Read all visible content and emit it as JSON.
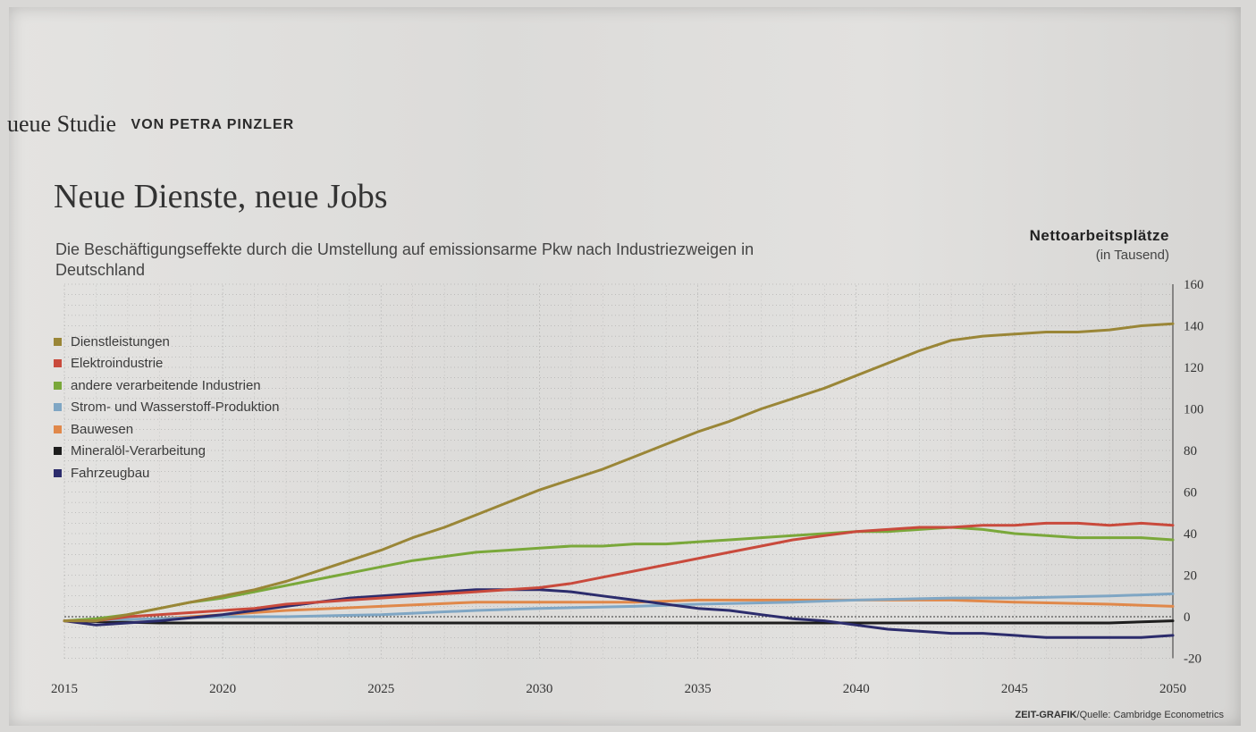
{
  "header": {
    "kicker": "ueue Studie",
    "author": "VON PETRA PINZLER"
  },
  "title": "Neue Dienste, neue Jobs",
  "subtitle": "Die Beschäftigungseffekte durch die Umstellung auf emissionsarme Pkw nach Industriezweigen in Deutschland",
  "unit": {
    "line1": "Nettoarbeitsplätze",
    "line2": "(in Tausend)"
  },
  "source": {
    "brand": "ZEIT-GRAFIK",
    "text": "/Quelle: Cambridge Econometrics"
  },
  "chart_data": {
    "type": "line",
    "title": "Neue Dienste, neue Jobs",
    "xlabel": "",
    "ylabel": "Nettoarbeitsplätze (in Tausend)",
    "xlim": [
      2015,
      2050
    ],
    "ylim": [
      -20,
      165
    ],
    "x_ticks": [
      2015,
      2020,
      2025,
      2030,
      2035,
      2040,
      2045,
      2050
    ],
    "y_ticks": [
      -20,
      0,
      20,
      40,
      60,
      80,
      100,
      120,
      140,
      160
    ],
    "grid": true,
    "legend_position": "top-left",
    "series": [
      {
        "name": "Dienstleistungen",
        "color": "#9a8637",
        "x": [
          2015,
          2016,
          2017,
          2018,
          2019,
          2020,
          2021,
          2022,
          2023,
          2024,
          2025,
          2026,
          2027,
          2028,
          2029,
          2030,
          2031,
          2032,
          2033,
          2034,
          2035,
          2036,
          2037,
          2038,
          2039,
          2040,
          2041,
          2042,
          2043,
          2044,
          2045,
          2046,
          2047,
          2048,
          2049,
          2050
        ],
        "y": [
          -2,
          -2,
          1,
          4,
          7,
          10,
          13,
          17,
          22,
          27,
          32,
          38,
          43,
          49,
          55,
          61,
          66,
          71,
          77,
          83,
          89,
          94,
          100,
          105,
          110,
          116,
          122,
          128,
          133,
          135,
          136,
          137,
          137,
          138,
          140,
          141
        ]
      },
      {
        "name": "Elektroindustrie",
        "color": "#c94a3c",
        "x": [
          2015,
          2016,
          2017,
          2018,
          2019,
          2020,
          2021,
          2022,
          2023,
          2024,
          2025,
          2026,
          2027,
          2028,
          2029,
          2030,
          2031,
          2032,
          2033,
          2034,
          2035,
          2036,
          2037,
          2038,
          2039,
          2040,
          2041,
          2042,
          2043,
          2044,
          2045,
          2046,
          2047,
          2048,
          2049,
          2050
        ],
        "y": [
          -2,
          -2,
          0,
          1,
          2,
          3,
          4,
          6,
          7,
          8,
          9,
          10,
          11,
          12,
          13,
          14,
          16,
          19,
          22,
          25,
          28,
          31,
          34,
          37,
          39,
          41,
          42,
          43,
          43,
          44,
          44,
          45,
          45,
          44,
          45,
          44
        ]
      },
      {
        "name": "andere verarbeitende Industrien",
        "color": "#7aa83a",
        "x": [
          2015,
          2016,
          2017,
          2018,
          2019,
          2020,
          2021,
          2022,
          2023,
          2024,
          2025,
          2026,
          2027,
          2028,
          2029,
          2030,
          2031,
          2032,
          2033,
          2034,
          2035,
          2036,
          2037,
          2038,
          2039,
          2040,
          2041,
          2042,
          2043,
          2044,
          2045,
          2046,
          2047,
          2048,
          2049,
          2050
        ],
        "y": [
          -2,
          -1,
          1,
          4,
          7,
          9,
          12,
          15,
          18,
          21,
          24,
          27,
          29,
          31,
          32,
          33,
          34,
          34,
          35,
          35,
          36,
          37,
          38,
          39,
          40,
          41,
          41,
          42,
          43,
          42,
          40,
          39,
          38,
          38,
          38,
          37
        ]
      },
      {
        "name": "Strom- und Wasserstoff-Produktion",
        "color": "#7fa6c4",
        "x": [
          2015,
          2018,
          2020,
          2022,
          2025,
          2028,
          2030,
          2033,
          2035,
          2038,
          2040,
          2043,
          2045,
          2048,
          2050
        ],
        "y": [
          -2,
          -1,
          0,
          0,
          1,
          3,
          4,
          5,
          6,
          7,
          8,
          9,
          9,
          10,
          11
        ]
      },
      {
        "name": "Bauwesen",
        "color": "#e0884a",
        "x": [
          2015,
          2018,
          2020,
          2022,
          2025,
          2028,
          2030,
          2033,
          2035,
          2038,
          2040,
          2043,
          2045,
          2048,
          2050
        ],
        "y": [
          -2,
          -1,
          1,
          3,
          5,
          7,
          7,
          7,
          8,
          8,
          8,
          8,
          7,
          6,
          5
        ]
      },
      {
        "name": "Mineralöl-Verarbeitung",
        "color": "#1d1d1d",
        "x": [
          2015,
          2018,
          2020,
          2023,
          2025,
          2028,
          2030,
          2033,
          2035,
          2038,
          2040,
          2043,
          2045,
          2048,
          2050
        ],
        "y": [
          -2,
          -3,
          -3,
          -3,
          -3,
          -3,
          -3,
          -3,
          -3,
          -3,
          -3,
          -3,
          -3,
          -3,
          -2
        ]
      },
      {
        "name": "Fahrzeugbau",
        "color": "#2c2c6c",
        "x": [
          2015,
          2016,
          2018,
          2020,
          2022,
          2024,
          2026,
          2028,
          2030,
          2031,
          2032,
          2033,
          2034,
          2035,
          2036,
          2037,
          2038,
          2039,
          2040,
          2041,
          2042,
          2043,
          2044,
          2045,
          2046,
          2047,
          2048,
          2049,
          2050
        ],
        "y": [
          -2,
          -4,
          -2,
          1,
          5,
          9,
          11,
          13,
          13,
          12,
          10,
          8,
          6,
          4,
          3,
          1,
          -1,
          -2,
          -4,
          -6,
          -7,
          -8,
          -8,
          -9,
          -10,
          -10,
          -10,
          -10,
          -9
        ]
      }
    ]
  }
}
